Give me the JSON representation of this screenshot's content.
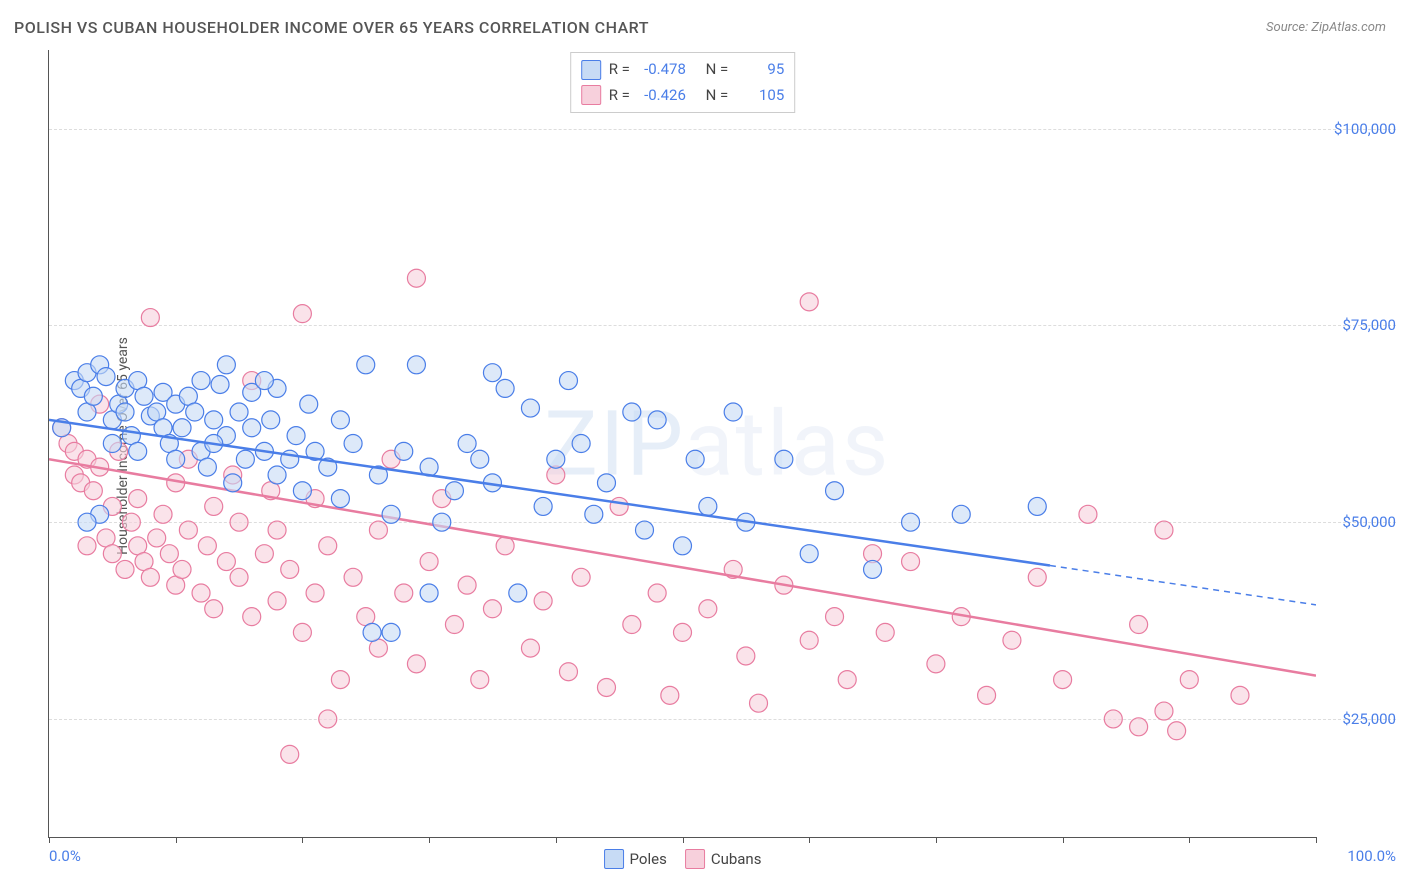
{
  "title": "POLISH VS CUBAN HOUSEHOLDER INCOME OVER 65 YEARS CORRELATION CHART",
  "source": "Source: ZipAtlas.com",
  "y_axis_label": "Householder Income Over 65 years",
  "watermark": "ZIPatlas",
  "chart": {
    "type": "scatter",
    "xlim": [
      0,
      100
    ],
    "ylim": [
      10000,
      110000
    ],
    "y_ticks": [
      25000,
      50000,
      75000,
      100000
    ],
    "y_tick_labels": [
      "$25,000",
      "$50,000",
      "$75,000",
      "$100,000"
    ],
    "x_ticks": [
      0,
      10,
      20,
      30,
      40,
      50,
      60,
      70,
      80,
      90,
      100
    ],
    "x_tick_labels": {
      "left": "0.0%",
      "right": "100.0%"
    },
    "grid_color": "#dddddd",
    "axis_color": "#555555",
    "background_color": "#ffffff",
    "marker_radius": 9,
    "marker_stroke_width": 1.2,
    "marker_fill_opacity": 0.25,
    "trend_line_width": 2.5
  },
  "legend_top": [
    {
      "swatch_fill": "#c7dbf5",
      "swatch_stroke": "#4a7ee8",
      "r_label": "R =",
      "r_value": "-0.478",
      "n_label": "N =",
      "n_value": "95"
    },
    {
      "swatch_fill": "#f7d0dc",
      "swatch_stroke": "#e87ca0",
      "r_label": "R =",
      "r_value": "-0.426",
      "n_label": "N =",
      "n_value": "105"
    }
  ],
  "legend_bottom": [
    {
      "swatch_fill": "#c7dbf5",
      "swatch_stroke": "#4a7ee8",
      "label": "Poles"
    },
    {
      "swatch_fill": "#f7d0dc",
      "swatch_stroke": "#e87ca0",
      "label": "Cubans"
    }
  ],
  "series": {
    "poles": {
      "color_stroke": "#4a7ee8",
      "color_fill": "#c7dbf5",
      "trend_start": [
        0,
        63000
      ],
      "trend_end": [
        79,
        44500
      ],
      "trend_extrap_end": [
        100,
        39500
      ],
      "points": [
        [
          1,
          62000
        ],
        [
          2,
          68000
        ],
        [
          2.5,
          67000
        ],
        [
          3,
          69000
        ],
        [
          3,
          64000
        ],
        [
          3.5,
          66000
        ],
        [
          4,
          70000
        ],
        [
          4.5,
          68500
        ],
        [
          4,
          51000
        ],
        [
          5,
          63000
        ],
        [
          5.5,
          65000
        ],
        [
          6,
          67000
        ],
        [
          6,
          64000
        ],
        [
          6.5,
          61000
        ],
        [
          7,
          68000
        ],
        [
          7.5,
          66000
        ],
        [
          7,
          59000
        ],
        [
          8,
          63500
        ],
        [
          8.5,
          64000
        ],
        [
          9,
          62000
        ],
        [
          9,
          66500
        ],
        [
          9.5,
          60000
        ],
        [
          10,
          65000
        ],
        [
          10,
          58000
        ],
        [
          10.5,
          62000
        ],
        [
          11,
          66000
        ],
        [
          11.5,
          64000
        ],
        [
          12,
          68000
        ],
        [
          12,
          59000
        ],
        [
          12.5,
          57000
        ],
        [
          13,
          63000
        ],
        [
          13.5,
          67500
        ],
        [
          14,
          61000
        ],
        [
          14,
          70000
        ],
        [
          14.5,
          55000
        ],
        [
          15,
          64000
        ],
        [
          15.5,
          58000
        ],
        [
          16,
          62000
        ],
        [
          16,
          66500
        ],
        [
          3,
          50000
        ],
        [
          17,
          59000
        ],
        [
          17.5,
          63000
        ],
        [
          18,
          56000
        ],
        [
          18,
          67000
        ],
        [
          19,
          58000
        ],
        [
          19.5,
          61000
        ],
        [
          20,
          54000
        ],
        [
          20.5,
          65000
        ],
        [
          21,
          59000
        ],
        [
          22,
          57000
        ],
        [
          23,
          63000
        ],
        [
          23,
          53000
        ],
        [
          24,
          60000
        ],
        [
          25,
          70000
        ],
        [
          25.5,
          36000
        ],
        [
          26,
          56000
        ],
        [
          27,
          36000
        ],
        [
          27,
          51000
        ],
        [
          28,
          59000
        ],
        [
          29,
          70000
        ],
        [
          30,
          41000
        ],
        [
          30,
          57000
        ],
        [
          31,
          50000
        ],
        [
          32,
          54000
        ],
        [
          33,
          60000
        ],
        [
          34,
          58000
        ],
        [
          35,
          69000
        ],
        [
          35,
          55000
        ],
        [
          36,
          67000
        ],
        [
          37,
          41000
        ],
        [
          38,
          64500
        ],
        [
          5,
          60000
        ],
        [
          39,
          52000
        ],
        [
          40,
          58000
        ],
        [
          41,
          68000
        ],
        [
          42,
          60000
        ],
        [
          43,
          51000
        ],
        [
          44,
          55000
        ],
        [
          13,
          60000
        ],
        [
          46,
          64000
        ],
        [
          47,
          49000
        ],
        [
          48,
          63000
        ],
        [
          50,
          47000
        ],
        [
          51,
          58000
        ],
        [
          52,
          52000
        ],
        [
          54,
          64000
        ],
        [
          55,
          50000
        ],
        [
          17,
          68000
        ],
        [
          58,
          58000
        ],
        [
          60,
          46000
        ],
        [
          62,
          54000
        ],
        [
          65,
          44000
        ],
        [
          68,
          50000
        ],
        [
          72,
          51000
        ],
        [
          78,
          52000
        ]
      ]
    },
    "cubans": {
      "color_stroke": "#e87ca0",
      "color_fill": "#f7d0dc",
      "trend_start": [
        0,
        58000
      ],
      "trend_end": [
        100,
        30500
      ],
      "points": [
        [
          1,
          62000
        ],
        [
          1.5,
          60000
        ],
        [
          2,
          59000
        ],
        [
          2,
          56000
        ],
        [
          2.5,
          55000
        ],
        [
          3,
          58000
        ],
        [
          3,
          47000
        ],
        [
          3.5,
          54000
        ],
        [
          4,
          57000
        ],
        [
          4,
          65000
        ],
        [
          4.5,
          48000
        ],
        [
          5,
          52000
        ],
        [
          5,
          46000
        ],
        [
          5.5,
          59000
        ],
        [
          6,
          44000
        ],
        [
          6.5,
          50000
        ],
        [
          7,
          53000
        ],
        [
          7,
          47000
        ],
        [
          7.5,
          45000
        ],
        [
          8,
          76000
        ],
        [
          8,
          43000
        ],
        [
          8.5,
          48000
        ],
        [
          9,
          51000
        ],
        [
          9.5,
          46000
        ],
        [
          10,
          42000
        ],
        [
          10,
          55000
        ],
        [
          10.5,
          44000
        ],
        [
          11,
          49000
        ],
        [
          11,
          58000
        ],
        [
          12,
          41000
        ],
        [
          12.5,
          47000
        ],
        [
          13,
          52000
        ],
        [
          13,
          39000
        ],
        [
          14,
          45000
        ],
        [
          14.5,
          56000
        ],
        [
          15,
          43000
        ],
        [
          15,
          50000
        ],
        [
          16,
          38000
        ],
        [
          16,
          68000
        ],
        [
          17,
          46000
        ],
        [
          17.5,
          54000
        ],
        [
          18,
          40000
        ],
        [
          18,
          49000
        ],
        [
          19,
          20500
        ],
        [
          19,
          44000
        ],
        [
          20,
          76500
        ],
        [
          20,
          36000
        ],
        [
          21,
          53000
        ],
        [
          21,
          41000
        ],
        [
          22,
          47000
        ],
        [
          22,
          25000
        ],
        [
          23,
          30000
        ],
        [
          24,
          43000
        ],
        [
          25,
          38000
        ],
        [
          26,
          49000
        ],
        [
          26,
          34000
        ],
        [
          27,
          58000
        ],
        [
          28,
          41000
        ],
        [
          29,
          81000
        ],
        [
          29,
          32000
        ],
        [
          30,
          45000
        ],
        [
          31,
          53000
        ],
        [
          32,
          37000
        ],
        [
          33,
          42000
        ],
        [
          34,
          30000
        ],
        [
          35,
          39000
        ],
        [
          36,
          47000
        ],
        [
          38,
          34000
        ],
        [
          39,
          40000
        ],
        [
          40,
          56000
        ],
        [
          41,
          31000
        ],
        [
          42,
          43000
        ],
        [
          44,
          29000
        ],
        [
          45,
          52000
        ],
        [
          46,
          37000
        ],
        [
          48,
          41000
        ],
        [
          49,
          28000
        ],
        [
          50,
          36000
        ],
        [
          52,
          39000
        ],
        [
          54,
          44000
        ],
        [
          55,
          33000
        ],
        [
          56,
          27000
        ],
        [
          58,
          42000
        ],
        [
          60,
          35000
        ],
        [
          60,
          78000
        ],
        [
          62,
          38000
        ],
        [
          63,
          30000
        ],
        [
          65,
          46000
        ],
        [
          66,
          36000
        ],
        [
          68,
          45000
        ],
        [
          70,
          32000
        ],
        [
          72,
          38000
        ],
        [
          74,
          28000
        ],
        [
          76,
          35000
        ],
        [
          78,
          43000
        ],
        [
          80,
          30000
        ],
        [
          82,
          51000
        ],
        [
          84,
          25000
        ],
        [
          86,
          37000
        ],
        [
          86,
          24000
        ],
        [
          88,
          26000
        ],
        [
          89,
          23500
        ],
        [
          90,
          30000
        ],
        [
          88,
          49000
        ],
        [
          94,
          28000
        ]
      ]
    }
  }
}
